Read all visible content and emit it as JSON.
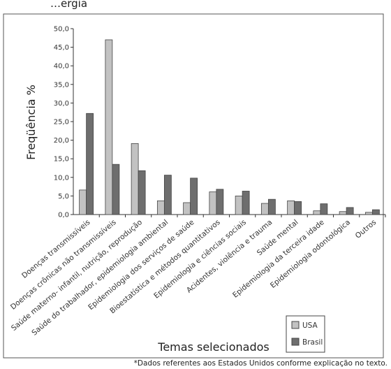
{
  "top_fragment": "…ergia",
  "footnote": "*Dados referentes aos Estados Unidos conforme explicação no texto.",
  "colors": {
    "usa": "#c2c2c2",
    "brasil": "#6e6e6e",
    "stroke": "#444444"
  },
  "chart_data": {
    "type": "bar",
    "title": "",
    "ylabel": "Freqüência %",
    "xlabel": "Temas selecionados",
    "ylim": [
      0,
      50
    ],
    "yticks": [
      "0,0",
      "5,0",
      "10,0",
      "15,0",
      "20,0",
      "25,0",
      "30,0",
      "35,0",
      "40,0",
      "45,0",
      "50,0"
    ],
    "grid": false,
    "legend_position": "bottom-right",
    "categories": [
      "Doenças transmissíveis",
      "Doenças crônicas não transmissíveis",
      "Saúde materno- infantil, nutrição, reprodução",
      "Saúde do trabalhador, epidemiologia ambiental",
      "Epidemiologia dos serviços de saúde",
      "Bioestatística e métodos quantitativos",
      "Epidemiologia e ciências sociais",
      "Acidentes, violência e trauma",
      "Saúde mental",
      "Epidemiologia da terceira idade",
      "Epidemiologia odontológica",
      "Outros"
    ],
    "series": [
      {
        "name": "USA",
        "values": [
          6.6,
          47.0,
          19.1,
          3.7,
          3.2,
          6.1,
          5.0,
          3.0,
          3.7,
          1.0,
          0.8,
          0.6
        ]
      },
      {
        "name": "Brasil",
        "values": [
          27.2,
          13.5,
          11.8,
          10.6,
          9.8,
          6.8,
          6.3,
          4.1,
          3.5,
          2.9,
          1.9,
          1.3
        ]
      }
    ]
  }
}
